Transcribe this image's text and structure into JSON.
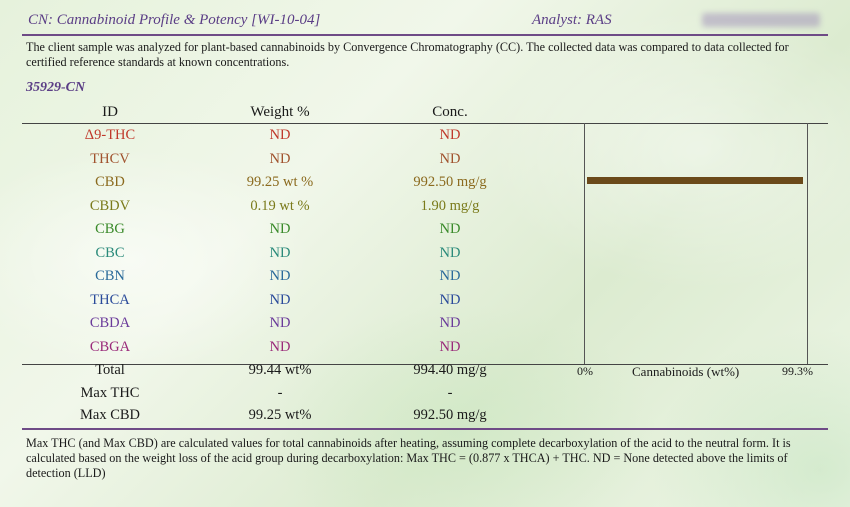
{
  "header": {
    "title": "CN: Cannabinoid Profile & Potency [WI-10-04]",
    "analyst": "Analyst: RAS"
  },
  "intro": "The client sample was analyzed for plant-based cannabinoids by Convergence Chromatography (CC).  The collected data was compared to data collected for certified reference standards at known concentrations.",
  "sample_id": "35929-CN",
  "columns": {
    "id": "ID",
    "weight": "Weight %",
    "conc": "Conc."
  },
  "rows": [
    {
      "id": "Δ9-THC",
      "weight": "ND",
      "conc": "ND",
      "color": "#c0392b"
    },
    {
      "id": "THCV",
      "weight": "ND",
      "conc": "ND",
      "color": "#a0522d"
    },
    {
      "id": "CBD",
      "weight": "99.25 wt %",
      "conc": "992.50 mg/g",
      "color": "#8b6a1e"
    },
    {
      "id": "CBDV",
      "weight": "0.19 wt %",
      "conc": "1.90 mg/g",
      "color": "#7a7a1a"
    },
    {
      "id": "CBG",
      "weight": "ND",
      "conc": "ND",
      "color": "#3a8a2a"
    },
    {
      "id": "CBC",
      "weight": "ND",
      "conc": "ND",
      "color": "#2a8a7a"
    },
    {
      "id": "CBN",
      "weight": "ND",
      "conc": "ND",
      "color": "#2a6a9a"
    },
    {
      "id": "THCA",
      "weight": "ND",
      "conc": "ND",
      "color": "#2a4a9a"
    },
    {
      "id": "CBDA",
      "weight": "ND",
      "conc": "ND",
      "color": "#6a3a9a"
    },
    {
      "id": "CBGA",
      "weight": "ND",
      "conc": "ND",
      "color": "#9a2a7a"
    }
  ],
  "totals": [
    {
      "id": "Total",
      "weight": "99.44 wt%",
      "conc": "994.40 mg/g"
    },
    {
      "id": "Max THC",
      "weight": "-",
      "conc": "-"
    },
    {
      "id": "Max CBD",
      "weight": "99.25 wt%",
      "conc": "992.50 mg/g"
    }
  ],
  "bar_chart": {
    "axis_min_label": "0%",
    "axis_title": "Cannabinoids (wt%)",
    "axis_max_label": "99.3%",
    "max": 99.3,
    "bars": [
      {
        "row": "CBD",
        "value": 99.25,
        "color": "#6b4a1a"
      }
    ]
  },
  "footnote": "Max THC (and Max CBD) are calculated values for total cannabinoids after heating, assuming complete decarboxylation of the acid to the neutral form. It is calculated based on the weight loss of the acid group during decarboxylation:  Max THC = (0.877 x THCA) + THC.  ND = None detected above the limits of detection (LLD)"
}
